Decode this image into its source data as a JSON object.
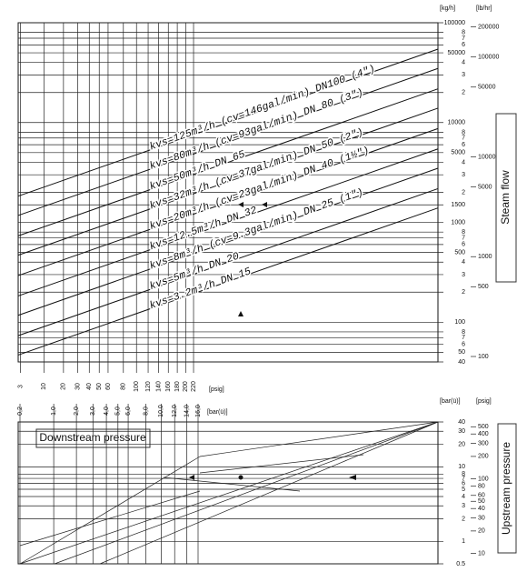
{
  "chart_data": [
    {
      "type": "nomogram",
      "ylabel": "Steam flow",
      "y_unit": "[kg/h]",
      "y2_unit": "[lb/hr]",
      "x_unit": "[psig]",
      "log": true,
      "ylim": [
        40,
        100000
      ],
      "yticks": [
        100000,
        {
          "value": 80000,
          "label": "8"
        },
        {
          "value": 70000,
          "label": "7"
        },
        {
          "value": 60000,
          "label": "6"
        },
        50000,
        {
          "value": 40000,
          "label": "4"
        },
        {
          "value": 30000,
          "label": "3"
        },
        {
          "value": 20000,
          "label": "2"
        },
        10000,
        {
          "value": 8000,
          "label": "8"
        },
        {
          "value": 7000,
          "label": "7"
        },
        {
          "value": 6000,
          "label": "6"
        },
        5000,
        {
          "value": 4000,
          "label": "4"
        },
        {
          "value": 3000,
          "label": "3"
        },
        {
          "value": 2000,
          "label": "2"
        },
        1500,
        1000,
        {
          "value": 800,
          "label": "8"
        },
        {
          "value": 700,
          "label": "7"
        },
        {
          "value": 600,
          "label": "6"
        },
        500,
        {
          "value": 400,
          "label": "4"
        },
        {
          "value": 300,
          "label": "3"
        },
        {
          "value": 200,
          "label": "2"
        },
        100,
        {
          "value": 80,
          "label": "8"
        },
        {
          "value": 70,
          "label": "7"
        },
        {
          "value": 60,
          "label": "6"
        },
        50,
        40
      ],
      "y2lim": [
        88.2,
        220462
      ],
      "y2ticks": [
        200000,
        100000,
        50000,
        10000,
        5000,
        1000,
        500,
        100
      ],
      "xlim": [
        2.9,
        232
      ],
      "xticks": [
        3,
        10,
        20,
        30,
        40,
        50,
        60,
        80,
        100,
        120,
        140,
        160,
        180,
        200,
        220
      ],
      "lines": [
        {
          "kvs": 125,
          "label": "kvs=125m³/h",
          "cv_label": "(cv=146gal/min)",
          "dn_label": "DN100 (4\")"
        },
        {
          "kvs": 80,
          "label": "kvs=80m³/h",
          "cv_label": "(cv=93gal/min)",
          "dn_label": "DN 80 (3\")"
        },
        {
          "kvs": 50,
          "label": "kvs=50m³/h",
          "dn_label": "DN 65"
        },
        {
          "kvs": 32,
          "label": "kvs=32m³/h",
          "cv_label": "(cv=37gal/min)",
          "dn_label": "DN 50 (2\")"
        },
        {
          "kvs": 20,
          "label": "kvs=20m³/h",
          "cv_label": "(cv=23gal/min)",
          "dn_label": "DN 40 (1½\")"
        },
        {
          "kvs": 12.5,
          "label": "kvs=12.5m³/h",
          "dn_label": "DN 32"
        },
        {
          "kvs": 8,
          "label": "kvs=8m³/h",
          "cv_label": "(cv=9.3gal/min)",
          "dn_label": "DN 25 (1\")"
        },
        {
          "kvs": 5,
          "label": "kvs=5m³/h",
          "dn_label": "DN 20"
        },
        {
          "kvs": 3.2,
          "label": "kvs=3.2m³/h",
          "dn_label": "DN 15"
        }
      ]
    },
    {
      "type": "nomogram",
      "xlabel": "Downstream pressure",
      "x_unit": "[bar(ü)]",
      "ylabel": "Upstream pressure",
      "y_unit": "[bar(ü)]",
      "y2_unit": "[psig]",
      "log": true,
      "xlim": [
        0.2,
        16
      ],
      "xticks": [
        {
          "value": 0.2,
          "label": "0,2"
        },
        {
          "value": 1,
          "label": "1,0"
        },
        {
          "value": 2,
          "label": "2,0"
        },
        {
          "value": 3,
          "label": "3,0"
        },
        {
          "value": 4,
          "label": "4,0"
        },
        {
          "value": 5,
          "label": "5,0"
        },
        {
          "value": 6,
          "label": "6,0"
        },
        {
          "value": 8,
          "label": "8,0"
        },
        {
          "value": 10,
          "label": "10,0"
        },
        {
          "value": 12,
          "label": "12,0"
        },
        {
          "value": 14,
          "label": "14,0"
        },
        {
          "value": 16,
          "label": "16,0"
        }
      ],
      "ylim": [
        0.5,
        40
      ],
      "yticks": [
        40,
        30,
        20,
        10,
        8,
        7,
        6,
        5,
        4,
        3,
        2,
        1,
        0.5
      ],
      "y2lim": [
        7.25,
        580
      ],
      "y2ticks": [
        500,
        400,
        300,
        200,
        100,
        80,
        60,
        50,
        40,
        30,
        20,
        10
      ]
    }
  ]
}
